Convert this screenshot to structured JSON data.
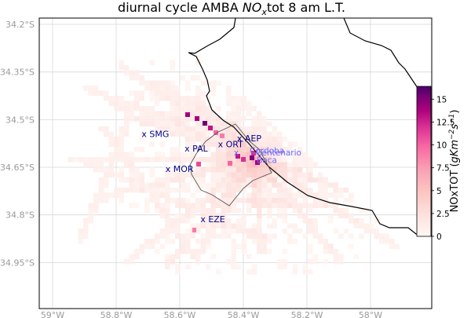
{
  "title_main": "diurnal cycle AMBA ",
  "title_var": "NO",
  "title_sub": "x",
  "title_rest": "tot 8 am L.T.",
  "x_ticks": [
    {
      "lon": -59.0,
      "label": "59°W"
    },
    {
      "lon": -58.8,
      "label": "58.8°W"
    },
    {
      "lon": -58.6,
      "label": "58.6°W"
    },
    {
      "lon": -58.4,
      "label": "58.4°W"
    },
    {
      "lon": -58.2,
      "label": "58.2°W"
    },
    {
      "lon": -58.0,
      "label": "58°W"
    }
  ],
  "y_ticks": [
    {
      "lat": -34.2,
      "label": "34.2°S"
    },
    {
      "lat": -34.35,
      "label": "34.35°S"
    },
    {
      "lat": -34.5,
      "label": "34.5°S"
    },
    {
      "lat": -34.65,
      "label": "34.65°S"
    },
    {
      "lat": -34.8,
      "label": "34.8°S"
    },
    {
      "lat": -34.95,
      "label": "34.95°S"
    }
  ],
  "colorbar": {
    "label_prefix": "NOxTOT (",
    "label_unit": "gKm",
    "label_exp1": "−2",
    "label_mid": "s",
    "label_exp2": "−1",
    "label_suffix": ")",
    "min": 0,
    "max": 16.4,
    "ticks": [
      {
        "value": 0,
        "label": "0"
      },
      {
        "value": 2.5,
        "label": "2.5"
      },
      {
        "value": 5,
        "label": "5"
      },
      {
        "value": 7.5,
        "label": "7.5"
      },
      {
        "value": 10,
        "label": "10"
      },
      {
        "value": 12.5,
        "label": "12.5"
      },
      {
        "value": 15,
        "label": "15"
      }
    ]
  },
  "stations": [
    {
      "id": "SMG",
      "label": "x SMG",
      "lon": -58.72,
      "lat": -34.545
    },
    {
      "id": "PAL",
      "label": "x PAL",
      "lon": -58.585,
      "lat": -34.59
    },
    {
      "id": "ORT",
      "label": "x ORT",
      "lon": -58.48,
      "lat": -34.577
    },
    {
      "id": "AEP",
      "label": "x AEP",
      "lon": -58.42,
      "lat": -34.558
    },
    {
      "id": "MOR",
      "label": "x MOR",
      "lon": -58.645,
      "lat": -34.655
    },
    {
      "id": "EZE",
      "label": "x EZE",
      "lon": -58.535,
      "lat": -34.813
    }
  ],
  "places": [
    {
      "label": "Cordoba",
      "lon": -58.38,
      "lat": -34.597
    },
    {
      "label": "x",
      "lon": -58.43,
      "lat": -34.603
    },
    {
      "label": "Centenario",
      "lon": -58.36,
      "lat": -34.603
    },
    {
      "label": "Boca",
      "lon": -58.358,
      "lat": -34.627
    }
  ],
  "colors": {
    "coast": "#000000",
    "border": "#555555",
    "grid": "#d8d8d8",
    "station": "#00008b",
    "place": "#6a6aff"
  },
  "colormap": "RdPu",
  "map_extent": {
    "lon": [
      -59.05,
      -57.85
    ],
    "lat": [
      -35.1,
      -34.18
    ]
  }
}
